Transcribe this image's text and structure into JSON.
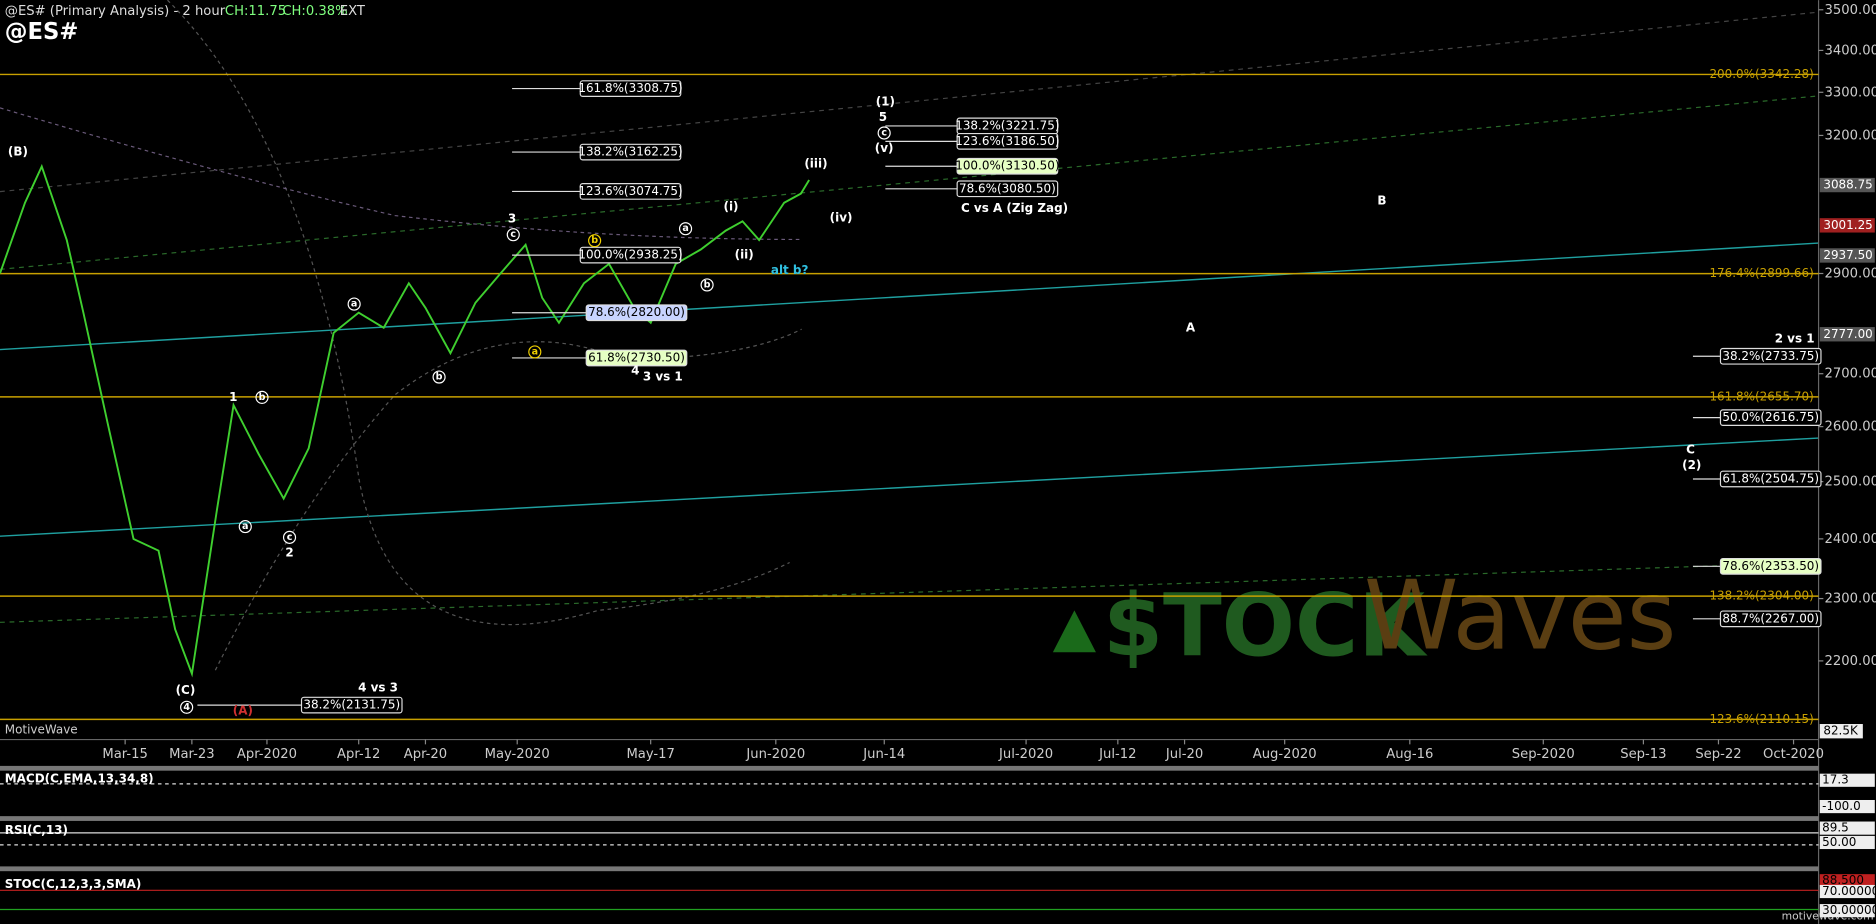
{
  "header": {
    "title": "@ES# (Primary Analysis) - 2 hour",
    "change": "CH:11.75",
    "change_pct": "CH:0.38%",
    "session": "EXT",
    "symbol": "@ES#"
  },
  "chart_data": {
    "type": "line",
    "log_scale": true,
    "color": "#3fcf2f",
    "x": [
      "2020-02-29",
      "2020-03-03",
      "2020-03-05",
      "2020-03-08",
      "2020-03-10",
      "2020-03-13",
      "2020-03-16",
      "2020-03-19",
      "2020-03-21",
      "2020-03-23",
      "2020-03-26",
      "2020-03-28",
      "2020-03-31",
      "2020-04-03",
      "2020-04-06",
      "2020-04-09",
      "2020-04-12",
      "2020-04-15",
      "2020-04-18",
      "2020-04-20",
      "2020-04-23",
      "2020-04-26",
      "2020-04-29",
      "2020-05-02",
      "2020-05-04",
      "2020-05-06",
      "2020-05-09",
      "2020-05-12",
      "2020-05-15",
      "2020-05-17",
      "2020-05-20",
      "2020-05-23",
      "2020-05-26",
      "2020-05-28",
      "2020-05-30",
      "2020-06-02",
      "2020-06-04",
      "2020-06-05"
    ],
    "values": [
      2900,
      3050,
      3130,
      2970,
      2820,
      2600,
      2400,
      2380,
      2250,
      2180,
      2450,
      2640,
      2550,
      2470,
      2560,
      2780,
      2820,
      2790,
      2880,
      2830,
      2740,
      2840,
      2900,
      2960,
      2850,
      2800,
      2880,
      2920,
      2830,
      2800,
      2920,
      2950,
      2990,
      3010,
      2970,
      3050,
      3070,
      3100
    ],
    "xlim": [
      "2020-02-29",
      "2020-10-04"
    ],
    "ylim": [
      2080,
      3524
    ],
    "xticks": [
      {
        "value": "2020-03-15",
        "label": "Mar-15"
      },
      {
        "value": "2020-03-23",
        "label": "Mar-23"
      },
      {
        "value": "2020-04-01",
        "label": "Apr-2020"
      },
      {
        "value": "2020-04-12",
        "label": "Apr-12"
      },
      {
        "value": "2020-04-20",
        "label": "Apr-20"
      },
      {
        "value": "2020-05-01",
        "label": "May-2020"
      },
      {
        "value": "2020-05-17",
        "label": "May-17"
      },
      {
        "value": "2020-06-01",
        "label": "Jun-2020"
      },
      {
        "value": "2020-06-14",
        "label": "Jun-14"
      },
      {
        "value": "2020-07-01",
        "label": "Jul-2020"
      },
      {
        "value": "2020-07-12",
        "label": "Jul-12"
      },
      {
        "value": "2020-07-20",
        "label": "Jul-20"
      },
      {
        "value": "2020-08-01",
        "label": "Aug-2020"
      },
      {
        "value": "2020-08-16",
        "label": "Aug-16"
      },
      {
        "value": "2020-09-01",
        "label": "Sep-2020"
      },
      {
        "value": "2020-09-13",
        "label": "Sep-13"
      },
      {
        "value": "2020-09-22",
        "label": "Sep-22"
      },
      {
        "value": "2020-10-01",
        "label": "Oct-2020"
      }
    ],
    "yticks": [
      {
        "value": 3500,
        "label": "3500.00"
      },
      {
        "value": 3400,
        "label": "3400.00"
      },
      {
        "value": 3300,
        "label": "3300.00"
      },
      {
        "value": 3200,
        "label": "3200.00"
      },
      {
        "value": 2900,
        "label": "2900.00"
      },
      {
        "value": 2700,
        "label": "2700.00"
      },
      {
        "value": 2600,
        "label": "2600.00"
      },
      {
        "value": 2500,
        "label": "2500.00"
      },
      {
        "value": 2400,
        "label": "2400.00"
      },
      {
        "value": 2300,
        "label": "2300.00"
      },
      {
        "value": 2200,
        "label": "2200.00"
      }
    ],
    "levels": [
      {
        "value": 3342.28,
        "label": "200.0%(3342.28)"
      },
      {
        "value": 2899.66,
        "label": "176.4%(2899.66)"
      },
      {
        "value": 2655.7,
        "label": "161.8%(2655.70)"
      },
      {
        "value": 2304.0,
        "label": "138.2%(2304.00)"
      },
      {
        "value": 2110.15,
        "label": "123.6%(2110.15)"
      }
    ],
    "fib_targets": [
      {
        "value": 3308.75,
        "label": "161.8%(3308.75)"
      },
      {
        "value": 3162.25,
        "label": "138.2%(3162.25)"
      },
      {
        "value": 3074.75,
        "label": "123.6%(3074.75)"
      },
      {
        "value": 2938.25,
        "label": "100.0%(2938.25)"
      },
      {
        "value": 2820.0,
        "label": "78.6%(2820.00)"
      },
      {
        "value": 2730.5,
        "label": "61.8%(2730.50)"
      },
      {
        "value": 2131.75,
        "label": "38.2%(2131.75)"
      },
      {
        "value": 3221.75,
        "label": "138.2%(3221.75)"
      },
      {
        "value": 3186.5,
        "label": "123.6%(3186.50)"
      },
      {
        "value": 3130.5,
        "label": "100.0%(3130.50)"
      },
      {
        "value": 3080.5,
        "label": "78.6%(3080.50)"
      },
      {
        "value": 2733.75,
        "label": "38.2%(2733.75)"
      },
      {
        "value": 2616.75,
        "label": "50.0%(2616.75)"
      },
      {
        "value": 2504.75,
        "label": "61.8%(2504.75)"
      },
      {
        "value": 2353.5,
        "label": "78.6%(2353.50)"
      },
      {
        "value": 2267.0,
        "label": "88.7%(2267.00)"
      }
    ],
    "price_tags": [
      {
        "value": 3088.75,
        "label": "3088.75"
      },
      {
        "value": 3001.25,
        "label": "3001.25"
      },
      {
        "value": 2937.5,
        "label": "2937.50"
      },
      {
        "value": 2777.0,
        "label": "2777.00"
      }
    ],
    "volume_tag": "82.5K",
    "wave_labels": [
      "(B)",
      "(C)",
      "4",
      "(A)",
      "4 vs 3",
      "1",
      "b",
      "a",
      "c",
      "2",
      "a",
      "b",
      "3",
      "c",
      "a",
      "b",
      "4",
      "3 vs 1",
      "a",
      "b",
      "(i)",
      "(ii)",
      "(iii)",
      "(iv)",
      "alt b?",
      "(1)",
      "5",
      "c",
      "(v)",
      "C vs A (Zig Zag)",
      "B",
      "A",
      "2 vs 1",
      "C",
      "(2)"
    ],
    "watermark": [
      "$TOCK",
      "Waves"
    ],
    "source": "MotiveWave"
  },
  "indicators": [
    {
      "label": "MACD(C,EMA,13,34,8)",
      "tags": [
        "17.3",
        "-100.0"
      ]
    },
    {
      "label": "RSI(C,13)",
      "tags": [
        "89.5",
        "50.00"
      ]
    },
    {
      "label": "STOC(C,12,3,3,SMA)",
      "tags": [
        "88.500",
        "70.00000",
        "30.00000"
      ]
    }
  ],
  "footer": "motivewave.com"
}
